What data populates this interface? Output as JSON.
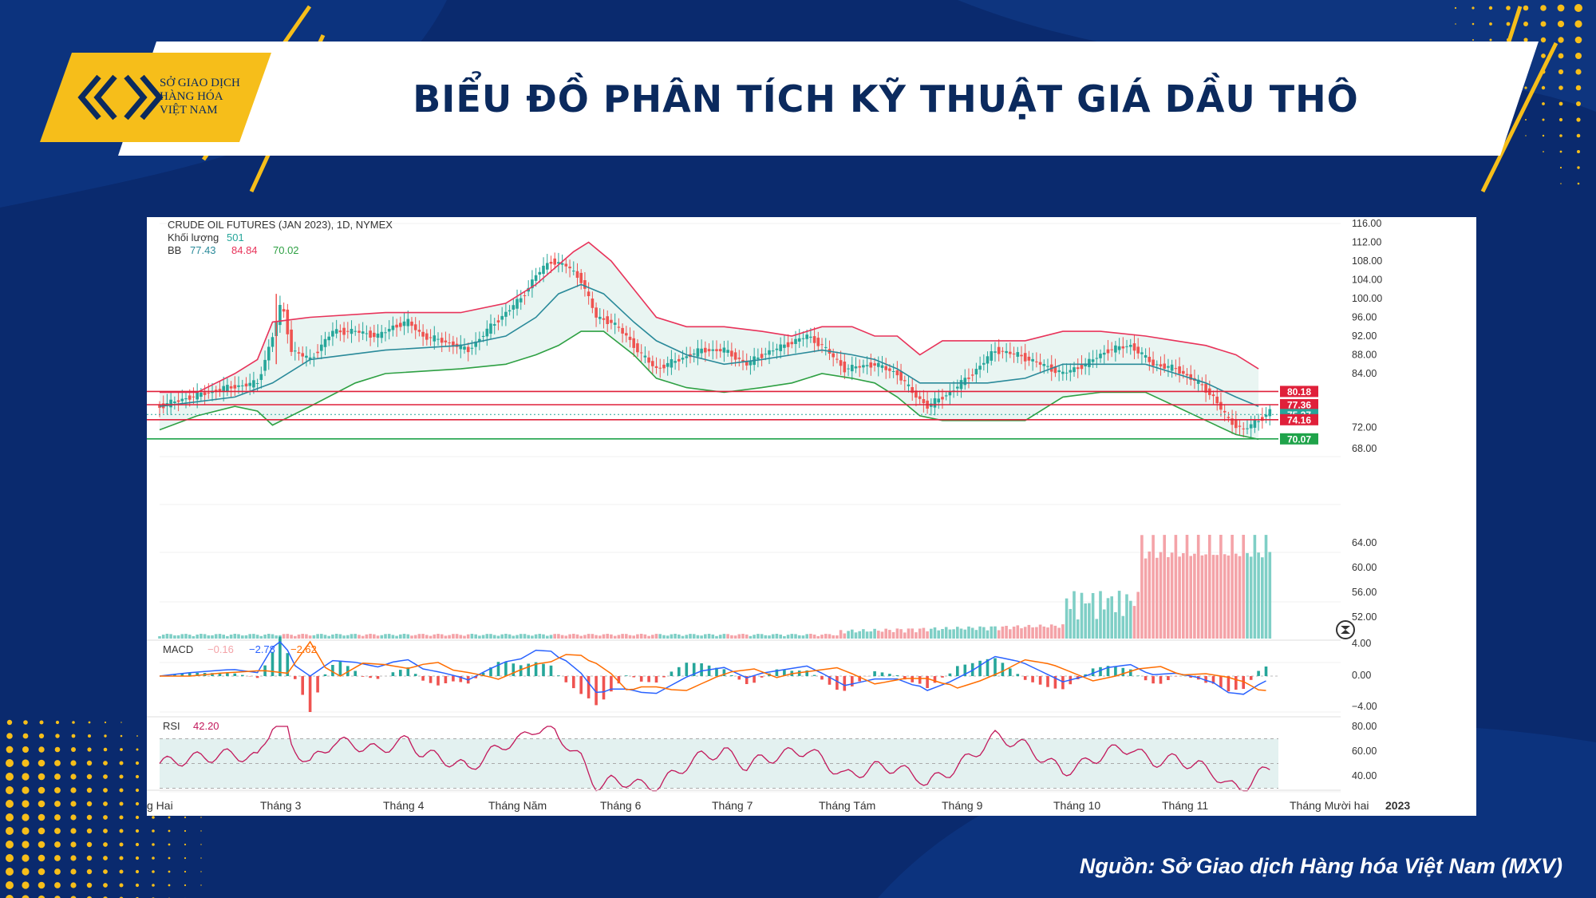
{
  "header": {
    "title": "BIỂU ĐỒ PHÂN TÍCH KỸ THUẬT GIÁ DẦU THÔ",
    "logo_lines": [
      "SỞ GIAO DỊCH",
      "HÀNG HÓA",
      "VIỆT NAM"
    ]
  },
  "footer": {
    "source": "Nguồn: Sở Giao dịch Hàng hóa Việt Nam (MXV)"
  },
  "colors": {
    "up": "#26a69a",
    "down": "#ef5350",
    "bb_upper": "#e8335a",
    "bb_middle": "#2a8a9a",
    "bb_lower": "#2ea043",
    "level_red": "#e0203a",
    "level_green": "#1fa34a",
    "navy": "#0a2a6e",
    "accent": "#f6be1a",
    "macd": "#2962ff",
    "signal": "#ff6d00",
    "rsi": "#c2185b"
  },
  "chart_data": {
    "type": "candlestick",
    "info_lines": [
      {
        "label": "CRUDE OIL FUTURES (JAN 2023), 1D, NYMEX"
      },
      {
        "label": "Khối lượng",
        "v1": "501"
      },
      {
        "label": "BB",
        "v1": "77.43",
        "v2": "84.84",
        "v3": "70.02"
      }
    ],
    "price_axis": {
      "min": 68,
      "max": 116,
      "ticks": [
        "116.00",
        "112.00",
        "108.00",
        "104.00",
        "100.00",
        "96.00",
        "92.00",
        "88.00",
        "84.00",
        "72.00",
        "68.00"
      ]
    },
    "volume_axis_ticks": [
      "64.00",
      "60.00",
      "56.00",
      "52.00"
    ],
    "x_labels": [
      "g Hai",
      "Tháng 3",
      "Tháng 4",
      "Tháng Năm",
      "Tháng 6",
      "Tháng 7",
      "Tháng Tám",
      "Tháng 9",
      "Tháng 10",
      "Tháng 11",
      "Tháng Mười hai",
      "2023"
    ],
    "levels": [
      {
        "value": 80.18,
        "label": "80.18",
        "color": "red"
      },
      {
        "value": 77.36,
        "label": "77.36",
        "color": "red"
      },
      {
        "value": 75.27,
        "label": "75.27",
        "color": "teal",
        "dotted": true
      },
      {
        "value": 74.16,
        "label": "74.16",
        "color": "red"
      },
      {
        "value": 70.07,
        "label": "70.07",
        "color": "green"
      }
    ],
    "close_path": [
      [
        0,
        77
      ],
      [
        8,
        79
      ],
      [
        18,
        81
      ],
      [
        26,
        82
      ],
      [
        30,
        92
      ],
      [
        32,
        98
      ],
      [
        33,
        97
      ],
      [
        35,
        89
      ],
      [
        40,
        87
      ],
      [
        46,
        93
      ],
      [
        52,
        93
      ],
      [
        58,
        92
      ],
      [
        62,
        94
      ],
      [
        66,
        95
      ],
      [
        70,
        92
      ],
      [
        75,
        91
      ],
      [
        82,
        89
      ],
      [
        88,
        94
      ],
      [
        92,
        97
      ],
      [
        96,
        100
      ],
      [
        100,
        105
      ],
      [
        104,
        108
      ],
      [
        108,
        107
      ],
      [
        112,
        104
      ],
      [
        116,
        96
      ],
      [
        120,
        95
      ],
      [
        124,
        92
      ],
      [
        128,
        88
      ],
      [
        132,
        85
      ],
      [
        138,
        87
      ],
      [
        144,
        89
      ],
      [
        150,
        89
      ],
      [
        156,
        86
      ],
      [
        160,
        88
      ],
      [
        166,
        90
      ],
      [
        172,
        92
      ],
      [
        176,
        90
      ],
      [
        182,
        85
      ],
      [
        190,
        86
      ],
      [
        196,
        84
      ],
      [
        200,
        80
      ],
      [
        204,
        77
      ],
      [
        210,
        80
      ],
      [
        216,
        84
      ],
      [
        222,
        89
      ],
      [
        228,
        88
      ],
      [
        234,
        86
      ],
      [
        240,
        84
      ],
      [
        246,
        86
      ],
      [
        252,
        89
      ],
      [
        258,
        90
      ],
      [
        264,
        86
      ],
      [
        270,
        85
      ],
      [
        276,
        82
      ],
      [
        280,
        79
      ],
      [
        284,
        74
      ],
      [
        288,
        72
      ],
      [
        292,
        74
      ],
      [
        295,
        76
      ]
    ],
    "bb": {
      "upper": [
        [
          0,
          80
        ],
        [
          10,
          80
        ],
        [
          20,
          84
        ],
        [
          26,
          87
        ],
        [
          30,
          95
        ],
        [
          40,
          96
        ],
        [
          60,
          97
        ],
        [
          80,
          97
        ],
        [
          92,
          99
        ],
        [
          100,
          103
        ],
        [
          110,
          110
        ],
        [
          114,
          112
        ],
        [
          120,
          108
        ],
        [
          126,
          102
        ],
        [
          132,
          96
        ],
        [
          140,
          94
        ],
        [
          150,
          94
        ],
        [
          160,
          93
        ],
        [
          168,
          92
        ],
        [
          176,
          94
        ],
        [
          184,
          94
        ],
        [
          190,
          92
        ],
        [
          196,
          92
        ],
        [
          202,
          88
        ],
        [
          208,
          91
        ],
        [
          220,
          91
        ],
        [
          230,
          91
        ],
        [
          240,
          93
        ],
        [
          250,
          93
        ],
        [
          262,
          92
        ],
        [
          270,
          91
        ],
        [
          278,
          90
        ],
        [
          286,
          88
        ],
        [
          292,
          85
        ]
      ],
      "middle": [
        [
          0,
          77
        ],
        [
          10,
          78
        ],
        [
          20,
          79
        ],
        [
          30,
          82
        ],
        [
          40,
          87
        ],
        [
          60,
          89
        ],
        [
          80,
          90
        ],
        [
          92,
          92
        ],
        [
          100,
          96
        ],
        [
          106,
          101
        ],
        [
          112,
          103
        ],
        [
          118,
          101
        ],
        [
          126,
          95
        ],
        [
          132,
          91
        ],
        [
          140,
          88
        ],
        [
          150,
          86
        ],
        [
          160,
          87
        ],
        [
          168,
          88
        ],
        [
          176,
          89
        ],
        [
          184,
          88
        ],
        [
          190,
          87
        ],
        [
          196,
          85
        ],
        [
          202,
          82
        ],
        [
          208,
          82
        ],
        [
          220,
          82
        ],
        [
          230,
          83
        ],
        [
          240,
          86
        ],
        [
          250,
          86
        ],
        [
          262,
          86
        ],
        [
          270,
          84
        ],
        [
          278,
          82
        ],
        [
          286,
          79
        ],
        [
          292,
          77
        ]
      ],
      "lower": [
        [
          0,
          72
        ],
        [
          10,
          75
        ],
        [
          20,
          77
        ],
        [
          26,
          76
        ],
        [
          30,
          73
        ],
        [
          40,
          77
        ],
        [
          52,
          82
        ],
        [
          60,
          84
        ],
        [
          80,
          85
        ],
        [
          92,
          86
        ],
        [
          100,
          88
        ],
        [
          106,
          90
        ],
        [
          112,
          93
        ],
        [
          118,
          93
        ],
        [
          126,
          88
        ],
        [
          132,
          83
        ],
        [
          140,
          81
        ],
        [
          150,
          80
        ],
        [
          160,
          81
        ],
        [
          168,
          82
        ],
        [
          176,
          84
        ],
        [
          184,
          83
        ],
        [
          190,
          82
        ],
        [
          196,
          79
        ],
        [
          202,
          75
        ],
        [
          208,
          74
        ],
        [
          220,
          74
        ],
        [
          230,
          74
        ],
        [
          240,
          79
        ],
        [
          250,
          80
        ],
        [
          262,
          80
        ],
        [
          270,
          77
        ],
        [
          278,
          74
        ],
        [
          286,
          71
        ],
        [
          292,
          70
        ]
      ]
    },
    "volume": {
      "latest": 501
    },
    "macd": {
      "label": "MACD",
      "values": [
        "−0.16",
        "−2.78",
        "−2.62"
      ],
      "axis_ticks": [
        "4.00",
        "0.00",
        "−4.00"
      ]
    },
    "rsi": {
      "label": "RSI",
      "value": "42.20",
      "axis_ticks": [
        "80.00",
        "60.00",
        "40.00"
      ]
    }
  }
}
